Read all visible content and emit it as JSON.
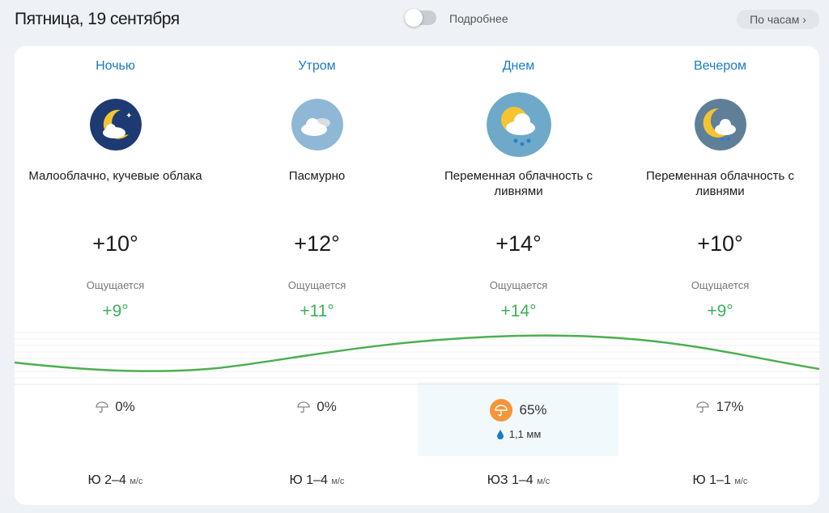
{
  "header": {
    "title": "Пятница, 19 сентября",
    "toggle_label": "Подробнее",
    "toggle_on": false,
    "hourly_button": "По часам ›"
  },
  "periods": [
    {
      "name": "Ночью",
      "icon": "moon-few-clouds-icon",
      "description": "Малооблачно, кучевые облака",
      "temp": "+10°",
      "feels_label": "Ощущается",
      "feels": "+9°",
      "precip_icon": "umbrella-icon",
      "precip": "0%",
      "wind": "Ю 2–4",
      "wind_unit": "м/с"
    },
    {
      "name": "Утром",
      "icon": "overcast-icon",
      "description": "Пасмурно",
      "temp": "+12°",
      "feels_label": "Ощущается",
      "feels": "+11°",
      "precip_icon": "umbrella-icon",
      "precip": "0%",
      "wind": "Ю 1–4",
      "wind_unit": "м/с"
    },
    {
      "name": "Днем",
      "icon": "sun-cloud-showers-icon",
      "description": "Переменная облачность с ливнями",
      "temp": "+14°",
      "feels_label": "Ощущается",
      "feels": "+14°",
      "precip_icon": "umbrella-rain-icon",
      "precip": "65%",
      "amount": "1,1 мм",
      "wind": "ЮЗ 1–4",
      "wind_unit": "м/с",
      "highlighted": true
    },
    {
      "name": "Вечером",
      "icon": "moon-cloud-showers-icon",
      "description": "Переменная облачность с ливнями",
      "temp": "+10°",
      "feels_label": "Ощущается",
      "feels": "+9°",
      "precip_icon": "umbrella-icon",
      "precip": "17%",
      "wind": "Ю 1–1",
      "wind_unit": "м/с"
    }
  ],
  "colors": {
    "accent": "#1a7bc4",
    "feels": "#3fae5b",
    "curve": "#4caf50",
    "precip_badge": "#f5953a"
  }
}
